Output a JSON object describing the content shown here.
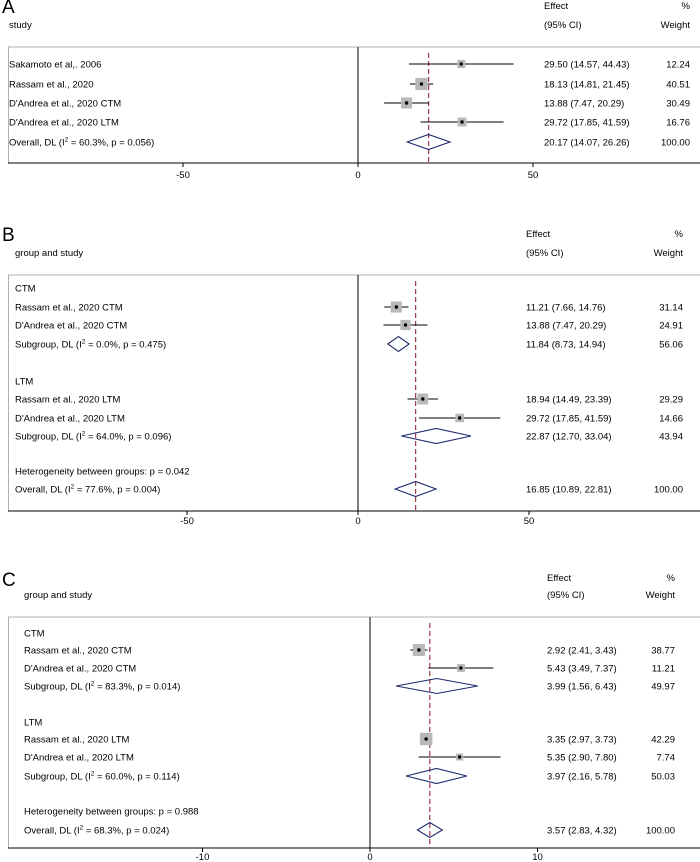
{
  "chart_data": [
    {
      "type": "forest",
      "panel_label": "A",
      "header": {
        "col1": "study",
        "effect_line1": "Effect",
        "effect_line2": "(95% CI)",
        "weight_line1": "%",
        "weight_line2": "Weight"
      },
      "xticks": [
        -50,
        0,
        50
      ],
      "xlim": [
        -100,
        100
      ],
      "reference_line": 0,
      "overall_line": 20.17,
      "rows": [
        {
          "kind": "study",
          "label": "Sakamoto et al,. 2006",
          "effect": 29.5,
          "lo": 14.57,
          "hi": 44.43,
          "weight": 12.24,
          "ci_text": "29.50 (14.57, 44.43)",
          "weight_text": "12.24"
        },
        {
          "kind": "study",
          "label": "Rassam et al., 2020",
          "effect": 18.13,
          "lo": 14.81,
          "hi": 21.45,
          "weight": 40.51,
          "ci_text": "18.13 (14.81, 21.45)",
          "weight_text": "40.51"
        },
        {
          "kind": "study",
          "label": "D'Andrea et al., 2020 CTM",
          "effect": 13.88,
          "lo": 7.47,
          "hi": 20.29,
          "weight": 30.49,
          "ci_text": "13.88 (7.47, 20.29)",
          "weight_text": "30.49"
        },
        {
          "kind": "study",
          "label": "D'Andrea et al., 2020 LTM",
          "effect": 29.72,
          "lo": 17.85,
          "hi": 41.59,
          "weight": 16.76,
          "ci_text": "29.72 (17.85, 41.59)",
          "weight_text": "16.76"
        },
        {
          "kind": "overall",
          "label_pre": "Overall, DL (I",
          "label_sup": "2",
          "label_post": " = 60.3%, p = 0.056)",
          "effect": 20.17,
          "lo": 14.07,
          "hi": 26.26,
          "ci_text": "20.17 (14.07, 26.26)",
          "weight_text": "100.00"
        }
      ]
    },
    {
      "type": "forest",
      "panel_label": "B",
      "header": {
        "col1": "group and study",
        "effect_line1": "Effect",
        "effect_line2": "(95% CI)",
        "weight_line1": "%",
        "weight_line2": "Weight"
      },
      "xticks": [
        -50,
        0,
        50
      ],
      "xlim": [
        -100,
        100
      ],
      "reference_line": 0,
      "overall_line": 16.85,
      "rows": [
        {
          "kind": "group",
          "label": "CTM"
        },
        {
          "kind": "study",
          "label": "Rassam et al., 2020 CTM",
          "effect": 11.21,
          "lo": 7.66,
          "hi": 14.76,
          "weight": 31.14,
          "ci_text": "11.21 (7.66, 14.76)",
          "weight_text": "31.14"
        },
        {
          "kind": "study",
          "label": "D'Andrea et al., 2020 CTM",
          "effect": 13.88,
          "lo": 7.47,
          "hi": 20.29,
          "weight": 24.91,
          "ci_text": "13.88 (7.47, 20.29)",
          "weight_text": "24.91"
        },
        {
          "kind": "subgroup",
          "label_pre": "Subgroup, DL (I",
          "label_sup": "2",
          "label_post": " = 0.0%, p = 0.475)",
          "effect": 11.84,
          "lo": 8.73,
          "hi": 14.94,
          "ci_text": "11.84 (8.73, 14.94)",
          "weight_text": "56.06"
        },
        {
          "kind": "group",
          "label": "LTM"
        },
        {
          "kind": "study",
          "label": "Rassam et al., 2020 LTM",
          "effect": 18.94,
          "lo": 14.49,
          "hi": 23.39,
          "weight": 29.29,
          "ci_text": "18.94 (14.49, 23.39)",
          "weight_text": "29.29"
        },
        {
          "kind": "study",
          "label": "D'Andrea et al., 2020 LTM",
          "effect": 29.72,
          "lo": 17.85,
          "hi": 41.59,
          "weight": 14.66,
          "ci_text": "29.72 (17.85, 41.59)",
          "weight_text": "14.66"
        },
        {
          "kind": "subgroup",
          "label_pre": "Subgroup, DL (I",
          "label_sup": "2",
          "label_post": " = 64.0%, p = 0.096)",
          "effect": 22.87,
          "lo": 12.7,
          "hi": 33.04,
          "ci_text": "22.87 (12.70, 33.04)",
          "weight_text": "43.94"
        },
        {
          "kind": "note",
          "label": "Heterogeneity between groups: p = 0.042"
        },
        {
          "kind": "overall",
          "label_pre": "Overall, DL (I",
          "label_sup": "2",
          "label_post": " = 77.6%, p = 0.004)",
          "effect": 16.85,
          "lo": 10.89,
          "hi": 22.81,
          "ci_text": "16.85 (10.89, 22.81)",
          "weight_text": "100.00"
        }
      ]
    },
    {
      "type": "forest",
      "panel_label": "C",
      "header": {
        "col1": "group and study",
        "effect_line1": "Effect",
        "effect_line2": "(95% CI)",
        "weight_line1": "%",
        "weight_line2": "Weight"
      },
      "xticks": [
        -10,
        0,
        10
      ],
      "xlim": [
        -20,
        20
      ],
      "reference_line": 0,
      "overall_line": 3.57,
      "rows": [
        {
          "kind": "group",
          "label": "CTM"
        },
        {
          "kind": "study",
          "label": "Rassam et al., 2020 CTM",
          "effect": 2.92,
          "lo": 2.41,
          "hi": 3.43,
          "weight": 38.77,
          "ci_text": "2.92 (2.41, 3.43)",
          "weight_text": "38.77"
        },
        {
          "kind": "study",
          "label": "D'Andrea et al., 2020 CTM",
          "effect": 5.43,
          "lo": 3.49,
          "hi": 7.37,
          "weight": 11.21,
          "ci_text": "5.43 (3.49, 7.37)",
          "weight_text": "11.21"
        },
        {
          "kind": "subgroup",
          "label_pre": "Subgroup, DL (I",
          "label_sup": "2",
          "label_post": " = 83.3%, p = 0.014)",
          "effect": 3.99,
          "lo": 1.56,
          "hi": 6.43,
          "ci_text": "3.99 (1.56, 6.43)",
          "weight_text": "49.97"
        },
        {
          "kind": "group",
          "label": "LTM"
        },
        {
          "kind": "study",
          "label": "Rassam et al., 2020 LTM",
          "effect": 3.35,
          "lo": 2.97,
          "hi": 3.73,
          "weight": 42.29,
          "ci_text": "3.35 (2.97, 3.73)",
          "weight_text": "42.29"
        },
        {
          "kind": "study",
          "label": "D'Andrea et al., 2020 LTM",
          "effect": 5.35,
          "lo": 2.9,
          "hi": 7.8,
          "weight": 7.74,
          "ci_text": "5.35 (2.90, 7.80)",
          "weight_text": "7.74"
        },
        {
          "kind": "subgroup",
          "label_pre": "Subgroup, DL (I",
          "label_sup": "2",
          "label_post": " = 60.0%, p = 0.114)",
          "effect": 3.97,
          "lo": 2.16,
          "hi": 5.78,
          "ci_text": "3.97 (2.16, 5.78)",
          "weight_text": "50.03"
        },
        {
          "kind": "note",
          "label": "Heterogeneity between groups: p = 0.988"
        },
        {
          "kind": "overall",
          "label_pre": "Overall, DL (I",
          "label_sup": "2",
          "label_post": " = 68.3%, p = 0.024)",
          "effect": 3.57,
          "lo": 2.83,
          "hi": 4.32,
          "ci_text": "3.57 (2.83, 4.32)",
          "weight_text": "100.00"
        }
      ]
    }
  ],
  "colors": {
    "box": "#b8b8b8",
    "diamond": "#1f2a6e",
    "overall_line": "#9c3a4c",
    "axis": "#000000",
    "separator": "#b0b0b0"
  }
}
